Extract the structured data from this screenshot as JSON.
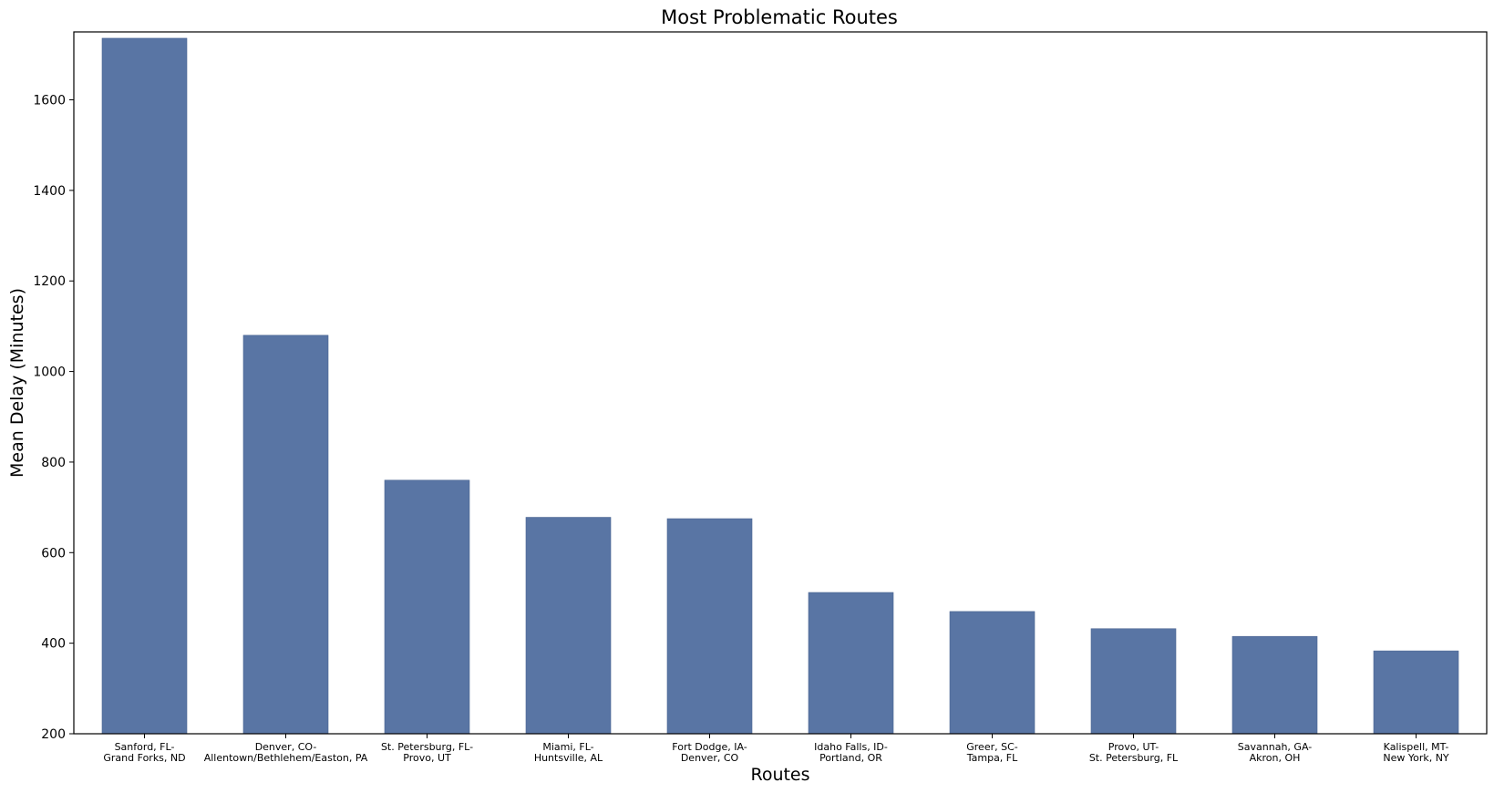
{
  "chart_data": {
    "type": "bar",
    "title": "Most Problematic Routes",
    "xlabel": "Routes",
    "ylabel": "Mean Delay (Minutes)",
    "ylim": [
      200,
      1750
    ],
    "yticks": [
      200,
      400,
      600,
      800,
      1000,
      1200,
      1400,
      1600
    ],
    "grid": false,
    "legend": "none",
    "bar_color": "#5975a4",
    "categories": [
      [
        "Sanford, FL-",
        "Grand Forks, ND"
      ],
      [
        "Denver, CO-",
        "Allentown/Bethlehem/Easton, PA"
      ],
      [
        "St. Petersburg, FL-",
        "Provo, UT"
      ],
      [
        "Miami, FL-",
        "Huntsville, AL"
      ],
      [
        "Fort Dodge, IA-",
        "Denver, CO"
      ],
      [
        "Idaho Falls, ID-",
        "Portland, OR"
      ],
      [
        "Greer, SC-",
        "Tampa, FL"
      ],
      [
        "Provo, UT-",
        "St. Petersburg, FL"
      ],
      [
        "Savannah, GA-",
        "Akron, OH"
      ],
      [
        "Kalispell, MT-",
        "New York, NY"
      ]
    ],
    "values": [
      1736,
      1080,
      760,
      678,
      675,
      512,
      470,
      432,
      415,
      383
    ]
  }
}
